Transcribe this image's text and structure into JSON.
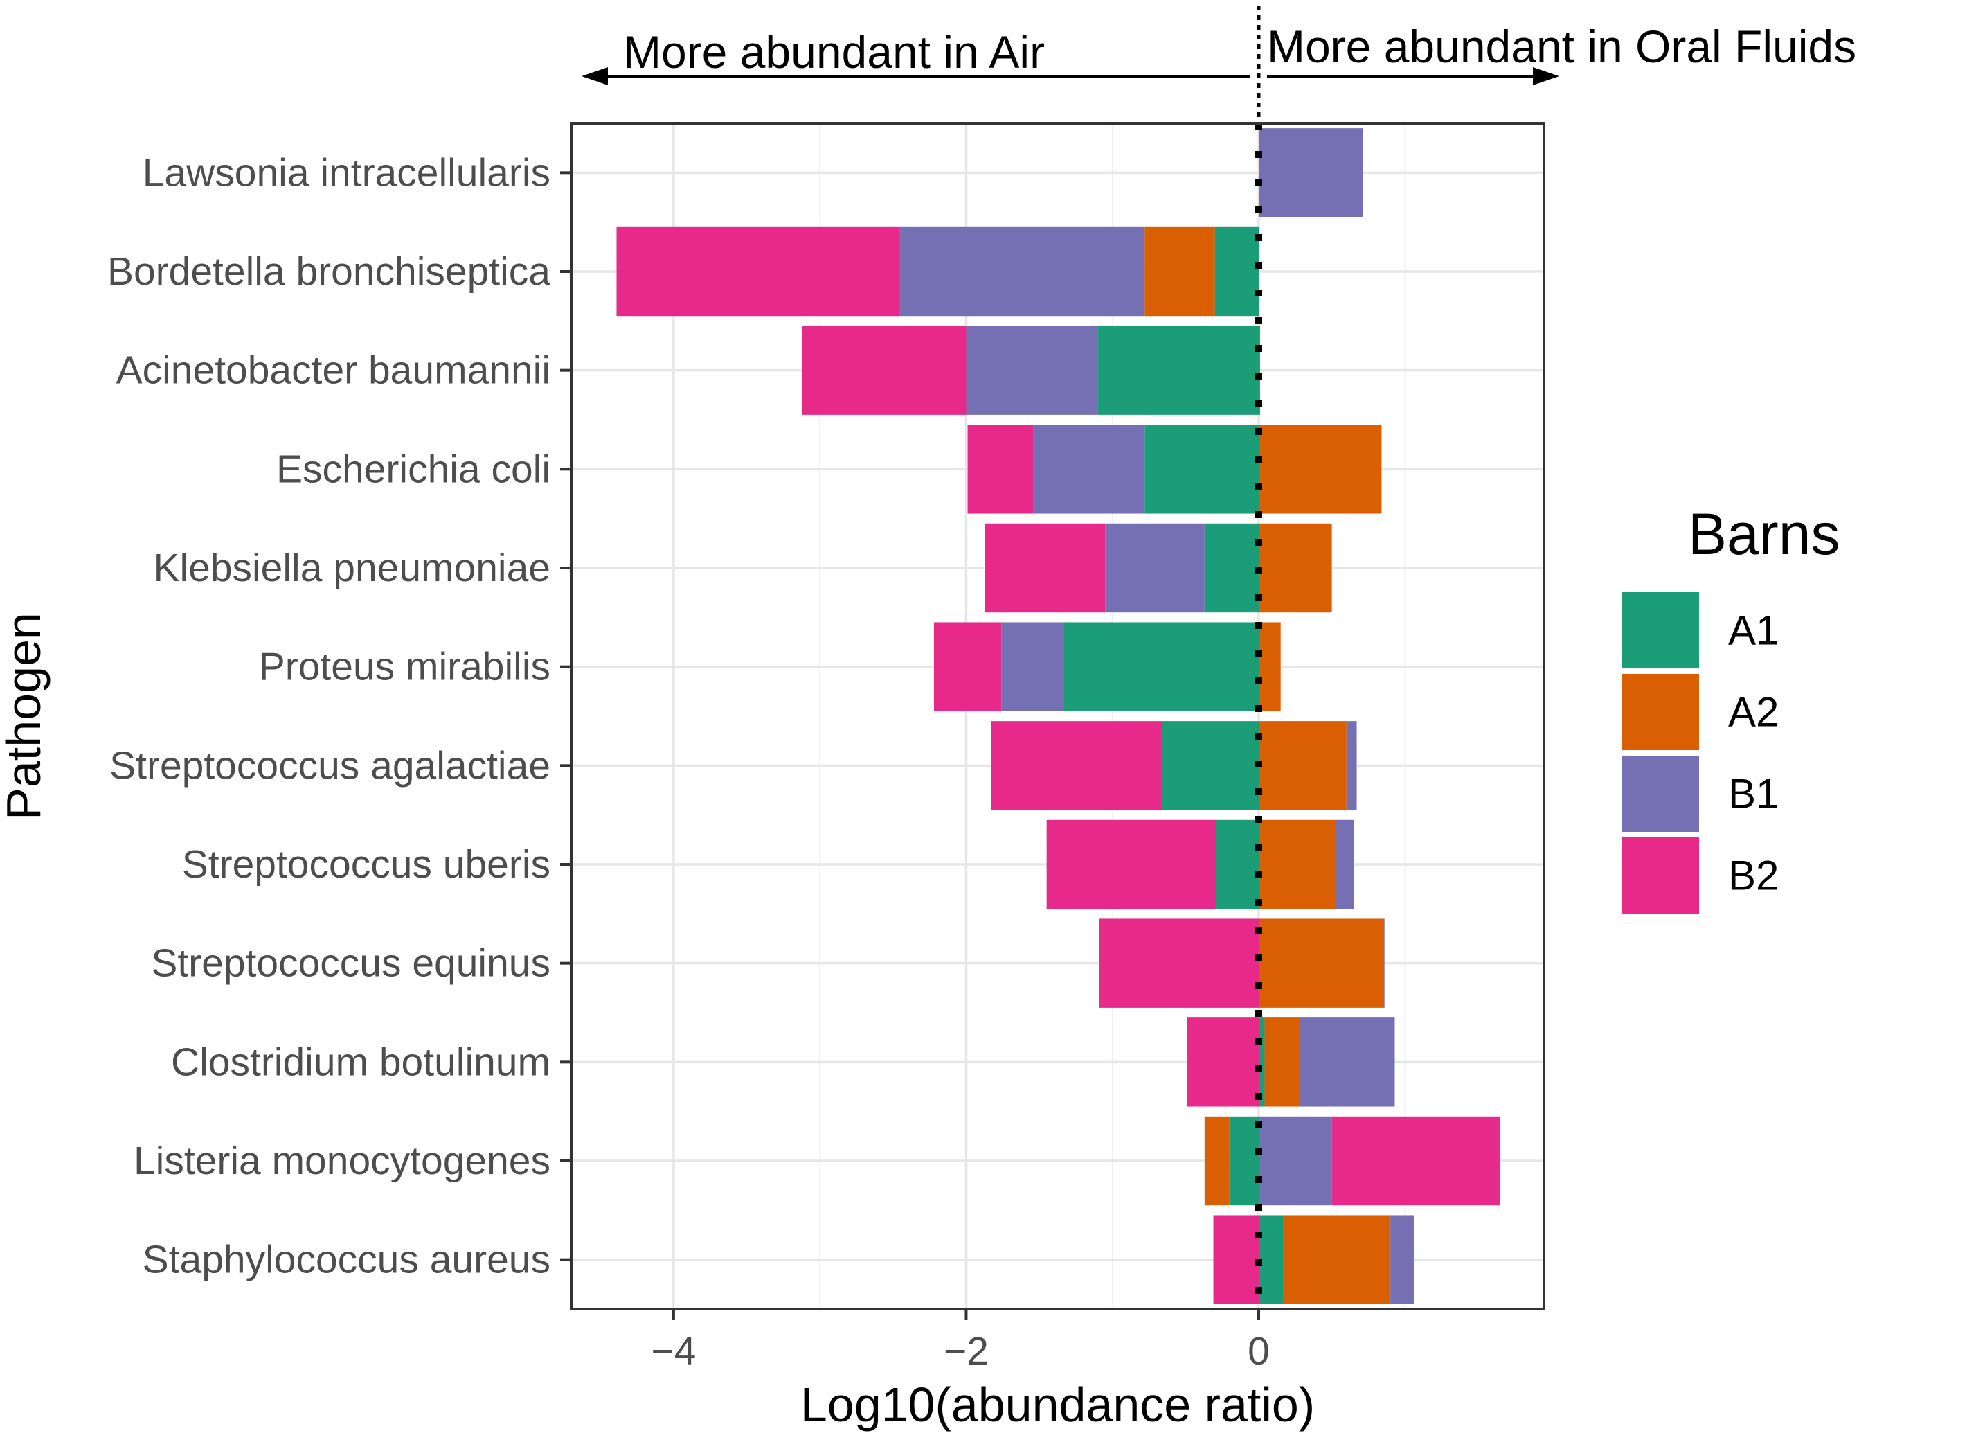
{
  "chart_data": {
    "type": "bar",
    "orientation": "horizontal",
    "stacked": "diverging",
    "xlabel": "Log10(abundance ratio)",
    "ylabel": "Pathogen",
    "xlim": [
      -4.7,
      1.95
    ],
    "x_ticks": [
      -4,
      -2,
      0
    ],
    "x_tick_labels": [
      "−4",
      "−2",
      "0"
    ],
    "grid": true,
    "reference_line": 0,
    "annotations": {
      "left": "More abundant in Air",
      "right": "More abundant in Oral Fluids"
    },
    "legend": {
      "title": "Barns",
      "position": "right"
    },
    "categories": [
      "Lawsonia intracellularis",
      "Bordetella bronchiseptica",
      "Acinetobacter baumannii",
      "Escherichia coli",
      "Klebsiella pneumoniae",
      "Proteus mirabilis",
      "Streptococcus agalactiae",
      "Streptococcus uberis",
      "Streptococcus equinus",
      "Clostridium botulinum",
      "Listeria monocytogenes",
      "Staphylococcus aureus"
    ],
    "series": [
      {
        "name": "A1",
        "color": "#1b9e77",
        "values": [
          0,
          -0.3,
          -1.1,
          -0.78,
          -0.37,
          -1.33,
          -0.66,
          -0.29,
          0,
          0.04,
          -0.2,
          0.17
        ]
      },
      {
        "name": "A2",
        "color": "#d95f02",
        "values": [
          0,
          -0.48,
          0.01,
          0.84,
          0.5,
          0.15,
          0.6,
          0.53,
          0.85,
          0.24,
          -0.17,
          0.73
        ]
      },
      {
        "name": "B1",
        "color": "#7570b3",
        "values": [
          0.71,
          -1.68,
          -0.9,
          -0.76,
          -0.68,
          -0.43,
          0.07,
          0.12,
          0.01,
          0.65,
          0.5,
          0.16
        ]
      },
      {
        "name": "B2",
        "color": "#e7298a",
        "values": [
          0,
          -1.93,
          -1.12,
          -0.45,
          -0.82,
          -0.46,
          -1.17,
          -1.16,
          -1.09,
          -0.49,
          1.15,
          -0.31
        ]
      }
    ]
  }
}
